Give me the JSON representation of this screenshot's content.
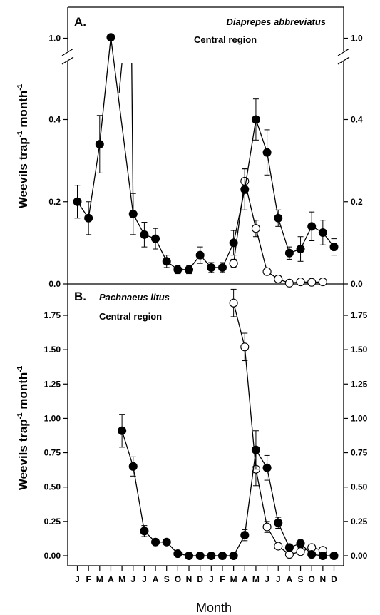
{
  "months": [
    "J",
    "F",
    "M",
    "A",
    "M",
    "J",
    "J",
    "A",
    "S",
    "O",
    "N",
    "D",
    "J",
    "F",
    "M",
    "A",
    "M",
    "J",
    "J",
    "A",
    "S",
    "O",
    "N",
    "D"
  ],
  "xlabel": "Month",
  "chart_data": [
    {
      "type": "scatter",
      "panel_label": "A.",
      "species": "Diaprepes abbreviatus",
      "region": "Central region",
      "ylabel_main": "Weevils trap",
      "ylabel_sup": "-1",
      "ylabel_mid": " month",
      "ylabel_sup2": "-1",
      "x_categories": [
        "J",
        "F",
        "M",
        "A",
        "M",
        "J",
        "J",
        "A",
        "S",
        "O",
        "N",
        "D",
        "J",
        "F",
        "M",
        "A",
        "M",
        "J",
        "J",
        "A",
        "S",
        "O",
        "N",
        "D"
      ],
      "broken_axis": true,
      "lower_ylim": [
        0,
        0.5
      ],
      "yticks_lower": [
        0.0,
        0.2,
        0.4
      ],
      "ytick_labels_lower": [
        "0.0",
        "0.2",
        "0.4"
      ],
      "upper_ytick": 1.0,
      "upper_ytick_label": "1.0",
      "series": [
        {
          "marker": "filled",
          "x": [
            1,
            2,
            3,
            4,
            5,
            6,
            7,
            8,
            9,
            10,
            11,
            12,
            13,
            14,
            15,
            16,
            17,
            18,
            19,
            20,
            21,
            22,
            23,
            24
          ],
          "y": [
            0.2,
            0.16,
            0.34,
            1.02,
            null,
            0.17,
            0.12,
            0.11,
            0.055,
            0.035,
            0.035,
            0.07,
            0.04,
            0.04,
            0.1,
            0.23,
            0.4,
            0.32,
            0.16,
            0.075,
            0.085,
            0.14,
            0.125,
            0.09
          ],
          "err": [
            0.04,
            0.04,
            0.07,
            0.08,
            null,
            0.05,
            0.03,
            0.025,
            0.015,
            0.01,
            0.01,
            0.02,
            0.012,
            0.012,
            0.03,
            0.05,
            0.05,
            0.055,
            0.02,
            0.015,
            0.03,
            0.035,
            0.03,
            0.02
          ]
        },
        {
          "marker": "open",
          "x": [
            15,
            16,
            17,
            18,
            19,
            20,
            21,
            22,
            23
          ],
          "y": [
            0.05,
            0.25,
            0.135,
            0.03,
            0.012,
            0.002,
            0.005,
            0.004,
            0.005
          ],
          "err": [
            0.01,
            0.03,
            0.02,
            0.008,
            0.005,
            0,
            0,
            0,
            0
          ]
        }
      ],
      "break_segment_to_x": [
        5,
        6
      ]
    },
    {
      "type": "scatter",
      "panel_label": "B.",
      "species": "Pachnaeus litus",
      "region": "Central region",
      "ylabel_main": "Weevils trap",
      "ylabel_sup": "-1",
      "ylabel_mid": " month",
      "ylabel_sup2": "-1",
      "x_categories": [
        "J",
        "F",
        "M",
        "A",
        "M",
        "J",
        "J",
        "A",
        "S",
        "O",
        "N",
        "D",
        "J",
        "F",
        "M",
        "A",
        "M",
        "J",
        "J",
        "A",
        "S",
        "O",
        "N",
        "D"
      ],
      "ylim": [
        0,
        1.95
      ],
      "yticks": [
        0.0,
        0.25,
        0.5,
        0.75,
        1.0,
        1.25,
        1.5,
        1.75
      ],
      "ytick_labels": [
        "0.00",
        "0.25",
        "0.50",
        "0.75",
        "1.00",
        "1.25",
        "1.50",
        "1.75"
      ],
      "series": [
        {
          "marker": "filled",
          "x": [
            5,
            6,
            7,
            8,
            9,
            10,
            11,
            12,
            13,
            14,
            15,
            16,
            17,
            18,
            19,
            20,
            21,
            22,
            23,
            24
          ],
          "y": [
            0.91,
            0.65,
            0.18,
            0.1,
            0.1,
            0.015,
            0.0,
            0.0,
            0.0,
            0.0,
            0.0,
            0.15,
            0.77,
            0.64,
            0.24,
            0.06,
            0.09,
            0.01,
            0.0,
            0.0
          ],
          "err": [
            0.12,
            0.07,
            0.04,
            0.025,
            0.02,
            0.01,
            0,
            0,
            0,
            0,
            0,
            0.04,
            0.14,
            0.09,
            0.04,
            0.02,
            0.03,
            0.01,
            0,
            0
          ]
        },
        {
          "marker": "open",
          "x": [
            15,
            16,
            17,
            18,
            19,
            20,
            21,
            22,
            23
          ],
          "y": [
            1.84,
            1.52,
            0.63,
            0.21,
            0.07,
            0.01,
            0.03,
            0.06,
            0.04
          ],
          "err": [
            0.1,
            0.1,
            0.12,
            0.04,
            0.02,
            0.01,
            0.01,
            0.02,
            0.01
          ]
        }
      ]
    }
  ]
}
